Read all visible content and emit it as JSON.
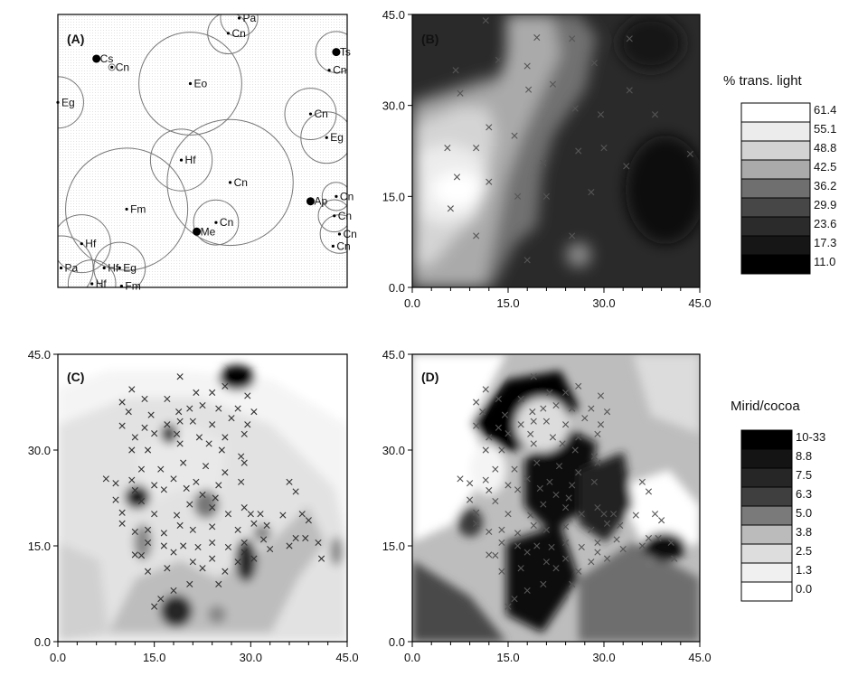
{
  "chart_data": [
    {
      "panel_label": "(A)",
      "type": "scatter",
      "description": "map of trees with crown-circle outlines",
      "trees": [
        {
          "label": "Pa",
          "x": 28.2,
          "y": 44.4,
          "r": 2.9
        },
        {
          "label": "Cn",
          "x": 26.5,
          "y": 41.9,
          "r": 3.2
        },
        {
          "label": "Cs",
          "x": 6.0,
          "y": 37.7,
          "r": 0
        },
        {
          "label": "Cn",
          "x": 8.4,
          "y": 36.3,
          "r": 0.5
        },
        {
          "label": "Ts",
          "x": 43.3,
          "y": 38.8,
          "r": 3.2
        },
        {
          "label": "Cn",
          "x": 42.2,
          "y": 35.8,
          "r": 0
        },
        {
          "label": "Eo",
          "x": 20.6,
          "y": 33.6,
          "r": 8.0
        },
        {
          "label": "Eg",
          "x": 0.0,
          "y": 30.5,
          "r": 4.0
        },
        {
          "label": "Cn",
          "x": 39.3,
          "y": 28.6,
          "r": 4.0
        },
        {
          "label": "Eg",
          "x": 41.8,
          "y": 24.7,
          "r": 4.0
        },
        {
          "label": "Hf",
          "x": 19.2,
          "y": 21.0,
          "r": 4.8
        },
        {
          "label": "Cn",
          "x": 26.8,
          "y": 17.3,
          "r": 9.8
        },
        {
          "label": "Fm",
          "x": 10.7,
          "y": 12.9,
          "r": 9.5
        },
        {
          "label": "Cn",
          "x": 24.6,
          "y": 10.7,
          "r": 3.5
        },
        {
          "label": "Me",
          "x": 21.6,
          "y": 9.2,
          "r": 0
        },
        {
          "label": "Ap",
          "x": 39.3,
          "y": 14.2,
          "r": 0
        },
        {
          "label": "Cn",
          "x": 43.3,
          "y": 15.0,
          "r": 2.2
        },
        {
          "label": "Cn",
          "x": 43.0,
          "y": 11.8,
          "r": 2.5
        },
        {
          "label": "Cn",
          "x": 43.8,
          "y": 8.8,
          "r": 3.0
        },
        {
          "label": "Cn",
          "x": 42.8,
          "y": 6.8,
          "r": 0
        },
        {
          "label": "Hf",
          "x": 3.7,
          "y": 7.2,
          "r": 4.5
        },
        {
          "label": "Pa",
          "x": 0.5,
          "y": 3.2,
          "r": 5.0
        },
        {
          "label": "Hf",
          "x": 5.3,
          "y": 0.6,
          "r": 3.7
        },
        {
          "label": "Hf",
          "x": 7.2,
          "y": 3.2,
          "r": 0
        },
        {
          "label": "Eg",
          "x": 9.6,
          "y": 3.2,
          "r": 4.0
        },
        {
          "label": "Fm",
          "x": 9.9,
          "y": 0.2,
          "r": 0
        }
      ],
      "xlim": [
        0,
        45
      ],
      "ylim": [
        0,
        45
      ]
    },
    {
      "panel_label": "(B)",
      "type": "heatmap",
      "legend_title": "% trans. light",
      "legend_levels": [
        "61.4",
        "55.1",
        "48.8",
        "42.5",
        "36.2",
        "29.9",
        "23.6",
        "17.3",
        "11.0"
      ],
      "legend_colors": [
        "#ffffff",
        "#ececec",
        "#d3d3d3",
        "#aaaaaa",
        "#6f6f6f",
        "#474747",
        "#2b2b2b",
        "#161616",
        "#000000"
      ],
      "xlim": [
        0,
        45
      ],
      "ylim": [
        0,
        45
      ],
      "xticks": [
        "0.0",
        "15.0",
        "30.0",
        "45.0"
      ],
      "yticks": [
        "0.0",
        "15.0",
        "30.0",
        "45.0"
      ],
      "sample_points": [
        [
          11.5,
          44
        ],
        [
          19.5,
          41.2
        ],
        [
          25,
          41
        ],
        [
          34,
          41
        ],
        [
          6.8,
          35.8
        ],
        [
          13.5,
          37.5
        ],
        [
          18,
          36.5
        ],
        [
          28.5,
          37
        ],
        [
          7.5,
          32
        ],
        [
          18.2,
          32.6
        ],
        [
          22,
          33.5
        ],
        [
          34,
          32.5
        ],
        [
          25.5,
          29.5
        ],
        [
          38,
          28.5
        ],
        [
          12,
          26.4
        ],
        [
          16,
          25
        ],
        [
          29.5,
          28.5
        ],
        [
          5.5,
          23
        ],
        [
          10,
          23
        ],
        [
          30,
          23
        ],
        [
          26,
          22.5
        ],
        [
          33.5,
          20
        ],
        [
          43.5,
          22
        ],
        [
          7,
          18.2
        ],
        [
          12,
          17.4
        ],
        [
          20.5,
          20.5
        ],
        [
          16.5,
          15
        ],
        [
          21,
          15
        ],
        [
          28,
          15.7
        ],
        [
          6,
          13
        ],
        [
          10,
          8.5
        ],
        [
          25,
          8.5
        ],
        [
          18,
          4.5
        ]
      ]
    },
    {
      "panel_label": "(C)",
      "type": "heatmap",
      "legend_title": "Mirid/cocoa",
      "legend_levels": [
        "10-33",
        "8.8",
        "7.5",
        "6.3",
        "5.0",
        "3.8",
        "2.5",
        "1.3",
        "0.0"
      ],
      "legend_colors": [
        "#000000",
        "#141414",
        "#262626",
        "#3f3f3f",
        "#7a7a7a",
        "#bbbbbb",
        "#dddddd",
        "#f0f0f0",
        "#ffffff"
      ],
      "xlim": [
        0,
        45
      ],
      "ylim": [
        0,
        45
      ],
      "xticks": [
        "0.0",
        "15.0",
        "30.0",
        "45.0"
      ],
      "yticks": [
        "0.0",
        "15.0",
        "30.0",
        "45.0"
      ],
      "sample_points": [
        [
          19,
          41.5
        ],
        [
          26,
          40
        ],
        [
          11.5,
          39.5
        ],
        [
          24,
          39
        ],
        [
          10,
          37.5
        ],
        [
          13.5,
          38
        ],
        [
          17,
          38
        ],
        [
          21.5,
          39
        ],
        [
          29.5,
          38.5
        ],
        [
          11,
          36
        ],
        [
          14.5,
          35.5
        ],
        [
          18.8,
          36
        ],
        [
          20.5,
          36.5
        ],
        [
          22.5,
          37
        ],
        [
          25,
          36.5
        ],
        [
          28,
          36.5
        ],
        [
          30.5,
          36
        ],
        [
          10,
          33.8
        ],
        [
          13.5,
          33.5
        ],
        [
          17,
          34
        ],
        [
          19,
          34.5
        ],
        [
          21,
          34.5
        ],
        [
          24,
          34
        ],
        [
          27,
          35
        ],
        [
          29.5,
          34
        ],
        [
          12,
          32
        ],
        [
          15,
          32.6
        ],
        [
          18.5,
          32.5
        ],
        [
          22,
          32
        ],
        [
          26,
          32
        ],
        [
          29,
          32.5
        ],
        [
          11.5,
          30
        ],
        [
          14,
          30
        ],
        [
          19,
          31
        ],
        [
          23.5,
          31
        ],
        [
          25.5,
          30
        ],
        [
          28.5,
          29
        ],
        [
          13,
          27
        ],
        [
          16,
          27
        ],
        [
          19.5,
          28
        ],
        [
          23,
          27.5
        ],
        [
          26,
          26.5
        ],
        [
          29,
          28
        ],
        [
          11.5,
          25.3
        ],
        [
          15,
          24.5
        ],
        [
          18,
          25.5
        ],
        [
          21.5,
          25
        ],
        [
          25,
          24.5
        ],
        [
          28.5,
          25
        ],
        [
          7.5,
          25.5
        ],
        [
          9,
          24.8
        ],
        [
          12,
          23.7
        ],
        [
          16.5,
          23.8
        ],
        [
          20,
          24
        ],
        [
          22.5,
          23
        ],
        [
          24.5,
          22.5
        ],
        [
          9,
          22.2
        ],
        [
          13,
          22
        ],
        [
          20.5,
          21.5
        ],
        [
          24,
          21
        ],
        [
          29,
          21
        ],
        [
          10,
          20.2
        ],
        [
          15,
          20
        ],
        [
          18.5,
          19.8
        ],
        [
          26.5,
          20
        ],
        [
          30,
          20
        ],
        [
          31.5,
          20
        ],
        [
          36,
          25
        ],
        [
          37,
          23.5
        ],
        [
          10,
          18.5
        ],
        [
          12,
          17.2
        ],
        [
          14,
          17.5
        ],
        [
          16.5,
          17
        ],
        [
          19,
          18.2
        ],
        [
          21,
          17.5
        ],
        [
          24,
          18
        ],
        [
          28,
          17.5
        ],
        [
          30.5,
          18.5
        ],
        [
          32.5,
          18.2
        ],
        [
          35,
          19.8
        ],
        [
          38,
          20
        ],
        [
          39,
          19
        ],
        [
          37,
          16.2
        ],
        [
          14,
          15.5
        ],
        [
          16.5,
          15
        ],
        [
          19.5,
          15
        ],
        [
          21.8,
          14.8
        ],
        [
          24,
          15.5
        ],
        [
          26.5,
          14.8
        ],
        [
          29,
          15.5
        ],
        [
          32,
          16
        ],
        [
          38.5,
          16.2
        ],
        [
          40.5,
          15.5
        ],
        [
          12,
          13.6
        ],
        [
          13,
          13.5
        ],
        [
          18,
          14
        ],
        [
          21,
          12.5
        ],
        [
          24,
          13
        ],
        [
          29,
          14
        ],
        [
          30.5,
          13
        ],
        [
          33,
          14.5
        ],
        [
          36,
          15
        ],
        [
          41,
          13
        ],
        [
          17,
          11.5
        ],
        [
          22.5,
          11.5
        ],
        [
          26,
          11
        ],
        [
          28,
          12.5
        ],
        [
          14,
          11
        ],
        [
          20.5,
          9
        ],
        [
          18,
          8
        ],
        [
          16,
          6.7
        ],
        [
          25,
          9
        ],
        [
          15,
          5.5
        ]
      ]
    },
    {
      "panel_label": "(D)",
      "type": "heatmap",
      "legend_title": "Mirid/cocoa",
      "legend_levels": [
        "10-33",
        "8.8",
        "7.5",
        "6.3",
        "5.0",
        "3.8",
        "2.5",
        "1.3",
        "0.0"
      ],
      "legend_colors": [
        "#000000",
        "#141414",
        "#262626",
        "#3f3f3f",
        "#7a7a7a",
        "#bbbbbb",
        "#dddddd",
        "#f0f0f0",
        "#ffffff"
      ],
      "xlim": [
        0,
        45
      ],
      "ylim": [
        0,
        45
      ],
      "xticks": [
        "0.0",
        "15.0",
        "30.0",
        "45.0"
      ],
      "yticks": [
        "0.0",
        "15.0",
        "30.0",
        "45.0"
      ],
      "sample_points": [
        [
          19,
          41.5
        ],
        [
          26,
          40
        ],
        [
          11.5,
          39.5
        ],
        [
          24,
          39
        ],
        [
          10,
          37.5
        ],
        [
          13.5,
          38
        ],
        [
          17,
          38
        ],
        [
          21.5,
          39
        ],
        [
          29.5,
          38.5
        ],
        [
          11,
          36
        ],
        [
          14.5,
          35.5
        ],
        [
          18.8,
          36
        ],
        [
          20.5,
          36.5
        ],
        [
          22.5,
          37
        ],
        [
          25,
          36.5
        ],
        [
          28,
          36.5
        ],
        [
          30.5,
          36
        ],
        [
          10,
          33.8
        ],
        [
          13.5,
          33.5
        ],
        [
          17,
          34
        ],
        [
          19,
          34.5
        ],
        [
          21,
          34.5
        ],
        [
          24,
          34
        ],
        [
          27,
          35
        ],
        [
          29.5,
          34
        ],
        [
          12,
          32
        ],
        [
          15,
          32.6
        ],
        [
          18.5,
          32.5
        ],
        [
          22,
          32
        ],
        [
          26,
          32
        ],
        [
          29,
          32.5
        ],
        [
          11.5,
          30
        ],
        [
          14,
          30
        ],
        [
          19,
          31
        ],
        [
          23.5,
          31
        ],
        [
          25.5,
          30
        ],
        [
          28.5,
          29
        ],
        [
          13,
          27
        ],
        [
          16,
          27
        ],
        [
          19.5,
          28
        ],
        [
          23,
          27.5
        ],
        [
          26,
          26.5
        ],
        [
          29,
          28
        ],
        [
          11.5,
          25.3
        ],
        [
          15,
          24.5
        ],
        [
          18,
          25.5
        ],
        [
          21.5,
          25
        ],
        [
          25,
          24.5
        ],
        [
          28.5,
          25
        ],
        [
          7.5,
          25.5
        ],
        [
          9,
          24.8
        ],
        [
          12,
          23.7
        ],
        [
          16.5,
          23.8
        ],
        [
          20,
          24
        ],
        [
          22.5,
          23
        ],
        [
          24.5,
          22.5
        ],
        [
          9,
          22.2
        ],
        [
          13,
          22
        ],
        [
          20.5,
          21.5
        ],
        [
          24,
          21
        ],
        [
          29,
          21
        ],
        [
          10,
          20.2
        ],
        [
          15,
          20
        ],
        [
          18.5,
          19.8
        ],
        [
          26.5,
          20
        ],
        [
          30,
          20
        ],
        [
          31.5,
          20
        ],
        [
          36,
          25
        ],
        [
          37,
          23.5
        ],
        [
          10,
          18.5
        ],
        [
          12,
          17.2
        ],
        [
          14,
          17.5
        ],
        [
          16.5,
          17
        ],
        [
          19,
          18.2
        ],
        [
          21,
          17.5
        ],
        [
          24,
          18
        ],
        [
          28,
          17.5
        ],
        [
          30.5,
          18.5
        ],
        [
          32.5,
          18.2
        ],
        [
          35,
          19.8
        ],
        [
          38,
          20
        ],
        [
          39,
          19
        ],
        [
          37,
          16.2
        ],
        [
          14,
          15.5
        ],
        [
          16.5,
          15
        ],
        [
          19.5,
          15
        ],
        [
          21.8,
          14.8
        ],
        [
          24,
          15.5
        ],
        [
          26.5,
          14.8
        ],
        [
          29,
          15.5
        ],
        [
          32,
          16
        ],
        [
          38.5,
          16.2
        ],
        [
          40.5,
          15.5
        ],
        [
          12,
          13.6
        ],
        [
          13,
          13.5
        ],
        [
          18,
          14
        ],
        [
          21,
          12.5
        ],
        [
          24,
          13
        ],
        [
          29,
          14
        ],
        [
          30.5,
          13
        ],
        [
          33,
          14.5
        ],
        [
          36,
          15
        ],
        [
          41,
          13
        ],
        [
          17,
          11.5
        ],
        [
          22.5,
          11.5
        ],
        [
          26,
          11
        ],
        [
          28,
          12.5
        ],
        [
          14,
          11
        ],
        [
          20.5,
          9
        ],
        [
          18,
          8
        ],
        [
          16,
          6.7
        ],
        [
          25,
          9
        ],
        [
          15,
          5.5
        ]
      ]
    }
  ]
}
